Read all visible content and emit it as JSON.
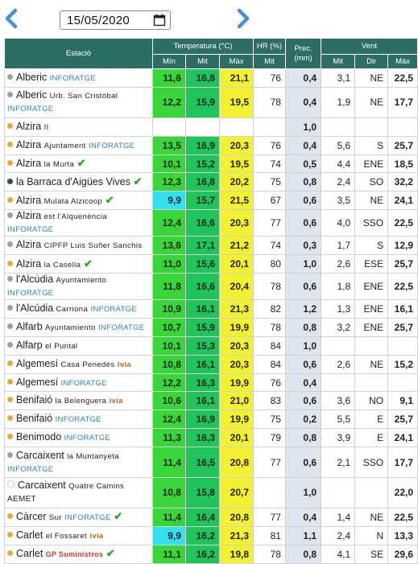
{
  "datebar": {
    "date": "15/05/2020",
    "prev_label": "previous day",
    "next_label": "next day"
  },
  "headers": {
    "station": "Estació",
    "temperature": "Temperatura (°C)",
    "hr": "HR (%)",
    "prec_line1": "Prec.",
    "prec_line2": "(mm)",
    "wind": "Vent",
    "min": "Mín",
    "mit": "Mit",
    "max": "Màx",
    "hr_mit": "Mit",
    "wind_mit": "Mit",
    "wind_dir": "Dir",
    "wind_max": "Màx"
  },
  "colors": {
    "header": "#2c6e66",
    "dot_gray": "#a0a0a0",
    "dot_orange": "#e8a938",
    "dot_green": "#1f5a3e",
    "dot_white": "#ffffff",
    "brand_green": "#2ba52b",
    "brand_red": "#d23a2a"
  },
  "rows": [
    {
      "name": "Alberic",
      "sub": "",
      "badge": "INFORATGE",
      "check": false,
      "dot": "gray",
      "tmin": "11,6",
      "tmit": "16,8",
      "tmax": "21,1",
      "hr": "76",
      "prec": "0,4",
      "wmit": "3,1",
      "wdir": "NE",
      "wmax": "22,5",
      "tall": false,
      "cmin": "c-lime",
      "cmit": "c-green",
      "cmax": "c-yellow"
    },
    {
      "name": "Alberic",
      "sub": "Urb. San Cristóbal",
      "badge": "INFORATGE",
      "check": false,
      "dot": "gray",
      "tmin": "12,2",
      "tmit": "15,9",
      "tmax": "19,5",
      "hr": "78",
      "prec": "0,4",
      "wmit": "1,9",
      "wdir": "NE",
      "wmax": "17,7",
      "tall": true,
      "cmin": "c-lime",
      "cmit": "c-green",
      "cmax": "c-yellow"
    },
    {
      "name": "Alzira",
      "sub": "II",
      "badge": "",
      "check": false,
      "dot": "orange",
      "tmin": "",
      "tmit": "",
      "tmax": "",
      "hr": "",
      "prec": "1,0",
      "wmit": "",
      "wdir": "",
      "wmax": "",
      "tall": false,
      "cmin": "",
      "cmit": "",
      "cmax": ""
    },
    {
      "name": "Alzira",
      "sub": "Ajuntament",
      "badge": "INFORATGE",
      "check": false,
      "dot": "orange",
      "tmin": "13,5",
      "tmit": "16,9",
      "tmax": "20,3",
      "hr": "76",
      "prec": "0,4",
      "wmit": "5,6",
      "wdir": "S",
      "wmax": "25,7",
      "tall": false,
      "cmin": "c-lime",
      "cmit": "c-green",
      "cmax": "c-yellow"
    },
    {
      "name": "Alzira",
      "sub": "la Murta",
      "badge": "",
      "check": true,
      "dot": "orange",
      "tmin": "10,1",
      "tmit": "15,2",
      "tmax": "19,5",
      "hr": "74",
      "prec": "0,5",
      "wmit": "4,4",
      "wdir": "ENE",
      "wmax": "18,5",
      "tall": false,
      "cmin": "c-lime",
      "cmit": "c-green",
      "cmax": "c-yellow"
    },
    {
      "name": "la Barraca d'Aigües Vives",
      "sub": "",
      "badge": "",
      "check": true,
      "dot": "green",
      "tmin": "12,3",
      "tmit": "16,8",
      "tmax": "20,2",
      "hr": "75",
      "prec": "0,8",
      "wmit": "2,4",
      "wdir": "SO",
      "wmax": "32,2",
      "tall": false,
      "cmin": "c-lime",
      "cmit": "c-green",
      "cmax": "c-yellow"
    },
    {
      "name": "Alzira",
      "sub": "Mulata Alzicoop",
      "badge": "",
      "check": true,
      "dot": "orange",
      "tmin": "9,9",
      "tmit": "15,7",
      "tmax": "21,5",
      "hr": "67",
      "prec": "0,6",
      "wmit": "3,5",
      "wdir": "NE",
      "wmax": "24,1",
      "tall": false,
      "cmin": "c-cyan",
      "cmit": "c-green",
      "cmax": "c-yellow"
    },
    {
      "name": "Alzira",
      "sub": "est l'Alquenència",
      "badge": "INFORATGE",
      "check": false,
      "dot": "gray",
      "tmin": "12,4",
      "tmit": "16,6",
      "tmax": "20,3",
      "hr": "77",
      "prec": "0,6",
      "wmit": "4,0",
      "wdir": "SSO",
      "wmax": "22,5",
      "tall": false,
      "cmin": "c-lime",
      "cmit": "c-green",
      "cmax": "c-yellow"
    },
    {
      "name": "Alzira",
      "sub": "CIPFP Luis Suñer Sanchis",
      "badge": "",
      "check": false,
      "dot": "gray",
      "tmin": "13,6",
      "tmit": "17,1",
      "tmax": "21,2",
      "hr": "74",
      "prec": "0,3",
      "wmit": "1,7",
      "wdir": "S",
      "wmax": "12,9",
      "tall": false,
      "cmin": "c-lime",
      "cmit": "c-green",
      "cmax": "c-yellow"
    },
    {
      "name": "Alzira",
      "sub": "la Casella",
      "badge": "",
      "check": true,
      "dot": "orange",
      "tmin": "11,0",
      "tmit": "15,6",
      "tmax": "20,1",
      "hr": "80",
      "prec": "1,0",
      "wmit": "2,6",
      "wdir": "ESE",
      "wmax": "25,7",
      "tall": false,
      "cmin": "c-lime",
      "cmit": "c-green",
      "cmax": "c-yellow"
    },
    {
      "name": "l'Alcúdia",
      "sub": "Ayuntamiento",
      "badge": "INFORATGE",
      "check": false,
      "dot": "gray",
      "tmin": "11,8",
      "tmit": "16,6",
      "tmax": "20,4",
      "hr": "78",
      "prec": "0,6",
      "wmit": "1,8",
      "wdir": "ENE",
      "wmax": "22,5",
      "tall": false,
      "cmin": "c-lime",
      "cmit": "c-green",
      "cmax": "c-yellow"
    },
    {
      "name": "l'Alcúdia",
      "sub": "Carriona",
      "badge": "INFORATGE",
      "check": false,
      "dot": "gray",
      "tmin": "10,9",
      "tmit": "16,1",
      "tmax": "21,3",
      "hr": "82",
      "prec": "1,2",
      "wmit": "1,3",
      "wdir": "ENE",
      "wmax": "16,1",
      "tall": false,
      "cmin": "c-lime",
      "cmit": "c-green",
      "cmax": "c-yellow"
    },
    {
      "name": "Alfarb",
      "sub": "Ayuntamiento",
      "badge": "INFORATGE",
      "check": false,
      "dot": "gray",
      "tmin": "10,7",
      "tmit": "15,9",
      "tmax": "19,9",
      "hr": "78",
      "prec": "0,8",
      "wmit": "3,2",
      "wdir": "ENE",
      "wmax": "25,7",
      "tall": false,
      "cmin": "c-lime",
      "cmit": "c-green",
      "cmax": "c-yellow"
    },
    {
      "name": "Alfarp",
      "sub": "el Puntal",
      "badge": "",
      "check": false,
      "dot": "gray",
      "tmin": "10,1",
      "tmit": "15,3",
      "tmax": "20,3",
      "hr": "84",
      "prec": "1,0",
      "wmit": "",
      "wdir": "",
      "wmax": "",
      "tall": false,
      "cmin": "c-lime",
      "cmit": "c-green",
      "cmax": "c-yellow"
    },
    {
      "name": "Algemesí",
      "sub": "Casa Penedés",
      "badge": "ivia",
      "check": false,
      "dot": "orange",
      "tmin": "10,8",
      "tmit": "16,1",
      "tmax": "20,3",
      "hr": "84",
      "prec": "0,6",
      "wmit": "2,6",
      "wdir": "NE",
      "wmax": "15,2",
      "tall": false,
      "cmin": "c-lime",
      "cmit": "c-green",
      "cmax": "c-yellow"
    },
    {
      "name": "Algemesí",
      "sub": "",
      "badge": "INFORATGE",
      "check": false,
      "dot": "orange",
      "tmin": "12,2",
      "tmit": "16,3",
      "tmax": "19,9",
      "hr": "76",
      "prec": "0,4",
      "wmit": "",
      "wdir": "",
      "wmax": "",
      "tall": false,
      "cmin": "c-lime",
      "cmit": "c-green",
      "cmax": "c-yellow"
    },
    {
      "name": "Benifaió",
      "sub": "la Belenguera",
      "badge": "ivia",
      "check": false,
      "dot": "orange",
      "tmin": "10,6",
      "tmit": "16,1",
      "tmax": "21,0",
      "hr": "83",
      "prec": "0,6",
      "wmit": "3,6",
      "wdir": "NO",
      "wmax": "9,1",
      "tall": false,
      "cmin": "c-lime",
      "cmit": "c-green",
      "cmax": "c-yellow"
    },
    {
      "name": "Benifaió",
      "sub": "",
      "badge": "INFORATGE",
      "check": false,
      "dot": "orange",
      "tmin": "12,4",
      "tmit": "16,9",
      "tmax": "19,9",
      "hr": "75",
      "prec": "0,2",
      "wmit": "5,5",
      "wdir": "E",
      "wmax": "25,7",
      "tall": false,
      "cmin": "c-lime",
      "cmit": "c-green",
      "cmax": "c-yellow"
    },
    {
      "name": "Benimodo",
      "sub": "",
      "badge": "INFORATGE",
      "check": false,
      "dot": "orange",
      "tmin": "11,3",
      "tmit": "16,3",
      "tmax": "20,1",
      "hr": "79",
      "prec": "0,8",
      "wmit": "3,9",
      "wdir": "E",
      "wmax": "24,1",
      "tall": false,
      "cmin": "c-lime",
      "cmit": "c-green",
      "cmax": "c-yellow"
    },
    {
      "name": "Carcaixent",
      "sub": "la Muntanyeta",
      "badge": "INFORATGE",
      "check": false,
      "dot": "gray",
      "tmin": "11,4",
      "tmit": "16,5",
      "tmax": "20,8",
      "hr": "77",
      "prec": "0,6",
      "wmit": "2,1",
      "wdir": "SSO",
      "wmax": "17,7",
      "tall": true,
      "cmin": "c-lime",
      "cmit": "c-green",
      "cmax": "c-yellow"
    },
    {
      "name": "Carcaixent",
      "sub": "Quatre Camins",
      "badge": "AEMET",
      "check": false,
      "dot": "white",
      "tmin": "10,8",
      "tmit": "15,8",
      "tmax": "20,7",
      "hr": "",
      "prec": "1,0",
      "wmit": "",
      "wdir": "",
      "wmax": "22,0",
      "tall": true,
      "cmin": "c-lime",
      "cmit": "c-green",
      "cmax": "c-yellow"
    },
    {
      "name": "Càrcer",
      "sub": "Sur",
      "badge": "INFORATGE",
      "check": true,
      "dot": "orange",
      "tmin": "11,4",
      "tmit": "16,4",
      "tmax": "20,8",
      "hr": "77",
      "prec": "0,4",
      "wmit": "1,4",
      "wdir": "NE",
      "wmax": "22,5",
      "tall": false,
      "cmin": "c-lime",
      "cmit": "c-green",
      "cmax": "c-yellow"
    },
    {
      "name": "Carlet",
      "sub": "el Fossaret",
      "badge": "ivia",
      "check": false,
      "dot": "orange",
      "tmin": "9,9",
      "tmit": "16,2",
      "tmax": "21,3",
      "hr": "81",
      "prec": "1,1",
      "wmit": "2,4",
      "wdir": "N",
      "wmax": "13,3",
      "tall": false,
      "cmin": "c-cyan",
      "cmit": "c-green",
      "cmax": "c-yellow"
    },
    {
      "name": "Carlet",
      "sub": "",
      "badge": "GP Suministros",
      "check": true,
      "dot": "orange",
      "tmin": "11,1",
      "tmit": "16,2",
      "tmax": "19,8",
      "hr": "78",
      "prec": "0,8",
      "wmit": "4,1",
      "wdir": "SE",
      "wmax": "29,6",
      "tall": false,
      "cmin": "c-lime",
      "cmit": "c-green",
      "cmax": "c-yellow"
    }
  ]
}
